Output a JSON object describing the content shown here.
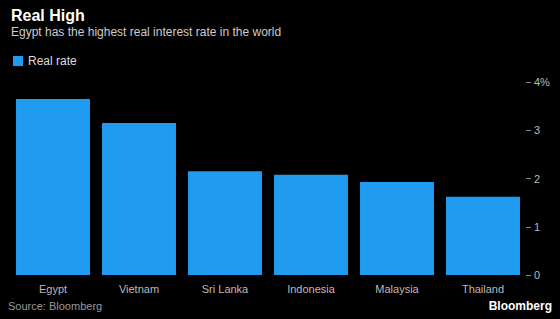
{
  "chart_data": {
    "type": "bar",
    "title": "Real High",
    "subtitle": "Egypt has the highest real interest rate in the world",
    "categories": [
      "Egypt",
      "Vietnam",
      "Sri Lanka",
      "Indonesia",
      "Malaysia",
      "Thailand"
    ],
    "series": [
      {
        "name": "Real rate",
        "color": "#1f9cf0",
        "values": [
          3.65,
          3.15,
          2.15,
          2.08,
          1.93,
          1.62
        ]
      }
    ],
    "ylim": [
      0,
      4
    ],
    "yticks": [
      0,
      1,
      2,
      3,
      {
        "value": 4,
        "label": "4%"
      }
    ],
    "grid": false,
    "legend": "top-left",
    "source": "Source: Bloomberg",
    "credit": "Bloomberg"
  }
}
